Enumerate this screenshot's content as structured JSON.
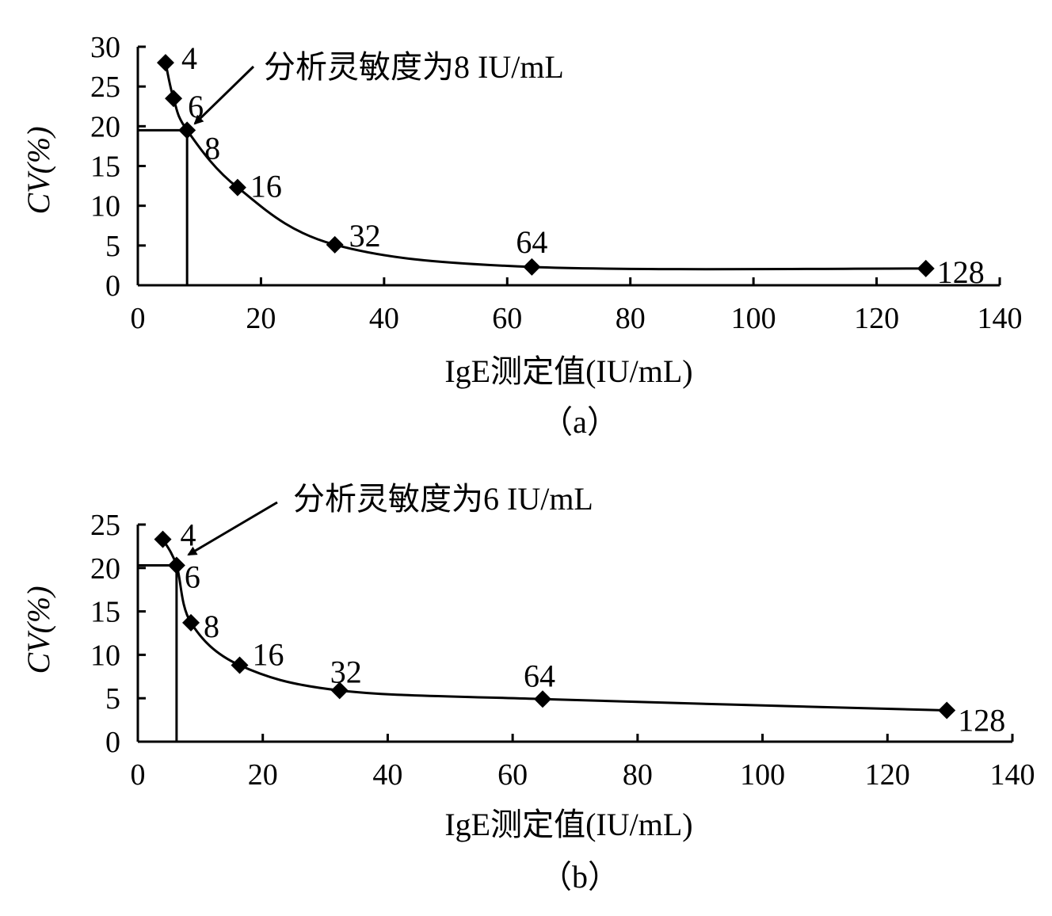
{
  "chart_data": [
    {
      "type": "scatter",
      "caption": "（a）",
      "xlabel": "IgE测定值(IU/mL)",
      "ylabel": "CV(%)",
      "xlim": [
        0,
        140
      ],
      "ylim": [
        0,
        30
      ],
      "xticks": [
        0,
        20,
        40,
        60,
        80,
        100,
        120,
        140
      ],
      "yticks": [
        0,
        5,
        10,
        15,
        20,
        25,
        30
      ],
      "grid": false,
      "legend": "none",
      "trendline": "smooth curve",
      "marker": "diamond",
      "points": [
        {
          "x": 4.5,
          "y": 28.0,
          "label": "4"
        },
        {
          "x": 5.8,
          "y": 23.5,
          "label": "6"
        },
        {
          "x": 8.0,
          "y": 19.5,
          "label": "8"
        },
        {
          "x": 16.2,
          "y": 12.3,
          "label": "16"
        },
        {
          "x": 32.0,
          "y": 5.1,
          "label": "32"
        },
        {
          "x": 64.0,
          "y": 2.3,
          "label": "64"
        },
        {
          "x": 128.0,
          "y": 2.1,
          "label": "128"
        }
      ],
      "sensitivity_marker": {
        "x": 8.0,
        "y": 19.5
      },
      "annotation": "分析灵敏度为8 IU/mL"
    },
    {
      "type": "scatter",
      "caption": "（b）",
      "xlabel": "IgE测定值(IU/mL)",
      "ylabel": "CV(%)",
      "xlim": [
        0,
        140
      ],
      "ylim": [
        0,
        25
      ],
      "xticks": [
        0,
        20,
        40,
        60,
        80,
        100,
        120,
        140
      ],
      "yticks": [
        0,
        5,
        10,
        15,
        20,
        25
      ],
      "grid": false,
      "legend": "none",
      "trendline": "smooth curve",
      "marker": "diamond",
      "points": [
        {
          "x": 4.0,
          "y": 23.3,
          "label": "4"
        },
        {
          "x": 6.2,
          "y": 20.3,
          "label": "6"
        },
        {
          "x": 8.5,
          "y": 13.7,
          "label": "8"
        },
        {
          "x": 16.3,
          "y": 8.8,
          "label": "16"
        },
        {
          "x": 32.3,
          "y": 5.9,
          "label": "32"
        },
        {
          "x": 64.8,
          "y": 4.9,
          "label": "64"
        },
        {
          "x": 129.5,
          "y": 3.6,
          "label": "128"
        }
      ],
      "sensitivity_marker": {
        "x": 6.2,
        "y": 20.3
      },
      "annotation": "分析灵敏度为6 IU/mL"
    }
  ]
}
